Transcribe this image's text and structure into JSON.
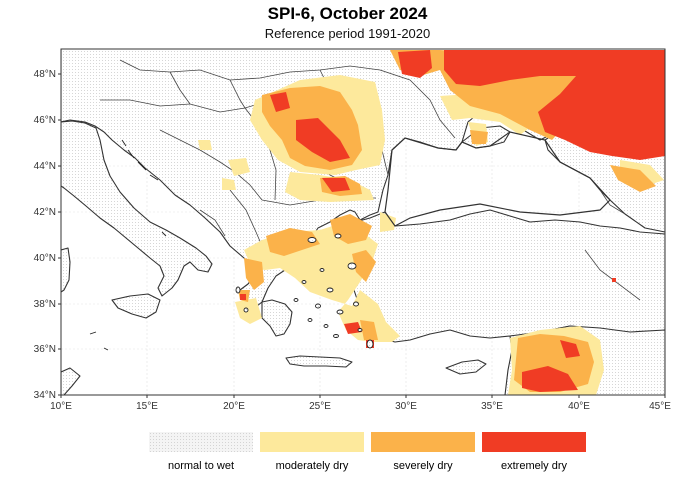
{
  "title": "SPI-6, October 2024",
  "subtitle": "Reference period 1991-2020",
  "axes": {
    "lat_ticks": [
      "34°N",
      "36°N",
      "38°N",
      "40°N",
      "42°N",
      "44°N",
      "46°N",
      "48°N"
    ],
    "lon_ticks": [
      "10°E",
      "15°E",
      "20°E",
      "25°E",
      "30°E",
      "35°E",
      "40°E",
      "45°E"
    ],
    "lon_range": [
      10,
      45
    ],
    "lat_range": [
      34,
      49.5
    ],
    "grid": true
  },
  "colors": {
    "normal": "#f4f4f4",
    "moderate": "#fde99c",
    "severe": "#fbb24a",
    "extreme": "#f03c24",
    "border": "#333333"
  },
  "legend": [
    {
      "label": "normal to wet",
      "color": "#f4f4f4"
    },
    {
      "label": "moderately dry",
      "color": "#fde99c"
    },
    {
      "label": "severely dry",
      "color": "#fbb24a"
    },
    {
      "label": "extremely dry",
      "color": "#f03c24"
    }
  ]
}
